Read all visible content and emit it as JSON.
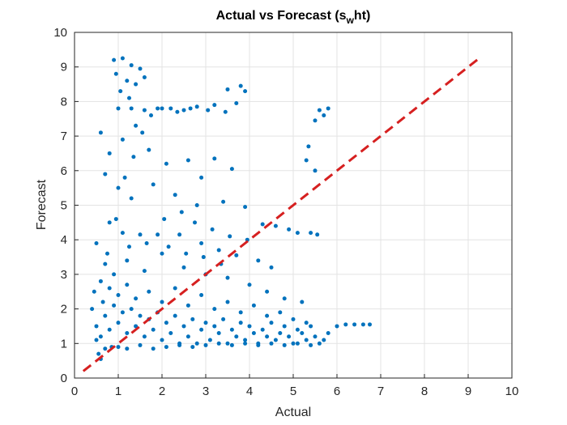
{
  "chart_data": {
    "type": "scatter",
    "title_main": "Actual vs Forecast (s",
    "title_sub": "w",
    "title_end": "ht)",
    "xlabel": "Actual",
    "ylabel": "Forecast",
    "xlim": [
      0,
      10
    ],
    "ylim": [
      0,
      10
    ],
    "xticks": [
      "0",
      "1",
      "2",
      "3",
      "4",
      "5",
      "6",
      "7",
      "8",
      "9",
      "10"
    ],
    "yticks": [
      "0",
      "1",
      "2",
      "3",
      "4",
      "5",
      "6",
      "7",
      "8",
      "9",
      "10"
    ],
    "grid": true,
    "marker_color": "#0072BD",
    "reference_line": {
      "style": "dashed",
      "color": "#D62020",
      "x": [
        0.2,
        9.3
      ],
      "y": [
        0.2,
        9.3
      ]
    },
    "series": [
      {
        "points": [
          [
            0.9,
            9.2
          ],
          [
            1.1,
            9.25
          ],
          [
            1.3,
            9.05
          ],
          [
            1.5,
            8.95
          ],
          [
            0.95,
            8.8
          ],
          [
            1.2,
            8.6
          ],
          [
            1.4,
            8.5
          ],
          [
            1.6,
            8.7
          ],
          [
            1.05,
            8.3
          ],
          [
            1.25,
            8.1
          ],
          [
            3.8,
            8.45
          ],
          [
            3.9,
            8.3
          ],
          [
            3.5,
            8.35
          ],
          [
            3.7,
            7.95
          ],
          [
            3.2,
            7.9
          ],
          [
            2.8,
            7.85
          ],
          [
            5.6,
            7.75
          ],
          [
            5.8,
            7.8
          ],
          [
            5.7,
            7.6
          ],
          [
            5.5,
            7.45
          ],
          [
            1.0,
            7.8
          ],
          [
            1.3,
            7.8
          ],
          [
            1.6,
            7.75
          ],
          [
            1.9,
            7.8
          ],
          [
            2.2,
            7.8
          ],
          [
            2.5,
            7.75
          ],
          [
            0.6,
            7.1
          ],
          [
            0.8,
            6.5
          ],
          [
            1.1,
            6.9
          ],
          [
            1.4,
            7.3
          ],
          [
            1.7,
            6.6
          ],
          [
            2.1,
            6.2
          ],
          [
            2.6,
            6.3
          ],
          [
            3.2,
            6.35
          ],
          [
            3.6,
            6.05
          ],
          [
            2.9,
            5.8
          ],
          [
            0.7,
            5.9
          ],
          [
            1.0,
            5.5
          ],
          [
            1.3,
            5.2
          ],
          [
            1.8,
            5.6
          ],
          [
            2.3,
            5.3
          ],
          [
            2.8,
            5.0
          ],
          [
            3.4,
            5.1
          ],
          [
            3.9,
            4.95
          ],
          [
            5.3,
            6.3
          ],
          [
            5.35,
            6.7
          ],
          [
            5.5,
            6.0
          ],
          [
            4.3,
            4.45
          ],
          [
            4.6,
            4.4
          ],
          [
            4.9,
            4.3
          ],
          [
            5.1,
            4.2
          ],
          [
            5.4,
            4.2
          ],
          [
            5.55,
            4.15
          ],
          [
            0.8,
            4.5
          ],
          [
            1.1,
            4.2
          ],
          [
            1.5,
            4.15
          ],
          [
            1.9,
            4.15
          ],
          [
            2.4,
            4.15
          ],
          [
            2.9,
            3.9
          ],
          [
            3.3,
            3.7
          ],
          [
            3.7,
            3.55
          ],
          [
            4.2,
            3.4
          ],
          [
            4.5,
            3.2
          ],
          [
            0.5,
            3.9
          ],
          [
            0.7,
            3.3
          ],
          [
            0.9,
            3.0
          ],
          [
            1.2,
            3.4
          ],
          [
            1.6,
            3.1
          ],
          [
            2.0,
            3.6
          ],
          [
            2.5,
            3.2
          ],
          [
            3.0,
            3.0
          ],
          [
            3.5,
            2.9
          ],
          [
            4.0,
            2.7
          ],
          [
            4.4,
            2.5
          ],
          [
            4.8,
            2.3
          ],
          [
            5.2,
            2.2
          ],
          [
            0.45,
            2.5
          ],
          [
            0.6,
            2.8
          ],
          [
            0.8,
            2.6
          ],
          [
            1.0,
            2.4
          ],
          [
            1.2,
            2.7
          ],
          [
            1.4,
            2.3
          ],
          [
            1.7,
            2.5
          ],
          [
            2.0,
            2.2
          ],
          [
            2.3,
            2.6
          ],
          [
            2.6,
            2.1
          ],
          [
            2.9,
            2.4
          ],
          [
            3.2,
            2.0
          ],
          [
            3.5,
            2.2
          ],
          [
            3.8,
            1.9
          ],
          [
            4.1,
            2.1
          ],
          [
            4.4,
            1.8
          ],
          [
            4.7,
            1.9
          ],
          [
            5.0,
            1.7
          ],
          [
            5.3,
            1.6
          ],
          [
            0.4,
            2.0
          ],
          [
            0.5,
            1.5
          ],
          [
            0.6,
            1.2
          ],
          [
            0.7,
            1.8
          ],
          [
            0.8,
            1.4
          ],
          [
            0.9,
            2.1
          ],
          [
            1.0,
            1.6
          ],
          [
            1.1,
            1.9
          ],
          [
            1.2,
            1.3
          ],
          [
            1.3,
            2.0
          ],
          [
            1.4,
            1.5
          ],
          [
            1.5,
            1.8
          ],
          [
            1.6,
            1.2
          ],
          [
            1.7,
            1.7
          ],
          [
            1.8,
            1.4
          ],
          [
            1.9,
            1.9
          ],
          [
            2.0,
            1.1
          ],
          [
            2.1,
            1.6
          ],
          [
            2.2,
            1.3
          ],
          [
            2.3,
            1.8
          ],
          [
            2.4,
            1.0
          ],
          [
            2.5,
            1.5
          ],
          [
            2.6,
            1.2
          ],
          [
            2.7,
            1.7
          ],
          [
            2.8,
            1.0
          ],
          [
            2.9,
            1.4
          ],
          [
            3.0,
            1.6
          ],
          [
            3.1,
            1.1
          ],
          [
            3.2,
            1.5
          ],
          [
            3.3,
            1.3
          ],
          [
            3.4,
            1.7
          ],
          [
            3.5,
            1.0
          ],
          [
            3.6,
            1.4
          ],
          [
            3.7,
            1.2
          ],
          [
            3.8,
            1.6
          ],
          [
            3.9,
            1.1
          ],
          [
            4.0,
            1.5
          ],
          [
            4.1,
            1.3
          ],
          [
            4.2,
            1.0
          ],
          [
            4.3,
            1.4
          ],
          [
            4.4,
            1.2
          ],
          [
            4.5,
            1.6
          ],
          [
            4.6,
            1.1
          ],
          [
            4.7,
            1.3
          ],
          [
            4.8,
            1.5
          ],
          [
            4.9,
            1.2
          ],
          [
            5.0,
            1.0
          ],
          [
            5.1,
            1.4
          ],
          [
            5.2,
            1.3
          ],
          [
            5.3,
            1.1
          ],
          [
            5.4,
            1.5
          ],
          [
            5.5,
            1.2
          ],
          [
            5.6,
            1.0
          ],
          [
            5.7,
            1.1
          ],
          [
            5.8,
            1.3
          ],
          [
            6.0,
            1.5
          ],
          [
            6.2,
            1.55
          ],
          [
            6.4,
            1.55
          ],
          [
            6.6,
            1.55
          ],
          [
            6.75,
            1.55
          ],
          [
            0.55,
            0.7
          ],
          [
            0.6,
            0.55
          ],
          [
            0.7,
            0.85
          ],
          [
            0.85,
            0.9
          ],
          [
            1.0,
            0.9
          ],
          [
            1.2,
            0.85
          ],
          [
            1.5,
            0.95
          ],
          [
            1.8,
            0.85
          ],
          [
            2.1,
            0.9
          ],
          [
            2.4,
            0.95
          ],
          [
            2.7,
            0.9
          ],
          [
            3.0,
            0.95
          ],
          [
            3.3,
            1.0
          ],
          [
            3.6,
            0.95
          ],
          [
            3.9,
            1.0
          ],
          [
            4.2,
            0.95
          ],
          [
            4.5,
            1.0
          ],
          [
            4.8,
            0.95
          ],
          [
            5.1,
            1.0
          ],
          [
            5.4,
            0.95
          ],
          [
            0.5,
            1.1
          ],
          [
            0.65,
            2.2
          ],
          [
            0.75,
            3.6
          ],
          [
            0.95,
            4.6
          ],
          [
            1.15,
            5.8
          ],
          [
            1.35,
            6.4
          ],
          [
            1.55,
            7.1
          ],
          [
            1.75,
            7.6
          ],
          [
            2.0,
            7.8
          ],
          [
            2.35,
            7.7
          ],
          [
            2.65,
            7.8
          ],
          [
            3.05,
            7.75
          ],
          [
            3.45,
            7.7
          ],
          [
            2.05,
            4.6
          ],
          [
            2.45,
            4.8
          ],
          [
            2.75,
            4.5
          ],
          [
            3.15,
            4.3
          ],
          [
            3.55,
            4.1
          ],
          [
            3.95,
            4.0
          ],
          [
            1.25,
            3.8
          ],
          [
            1.65,
            3.9
          ],
          [
            2.15,
            3.8
          ],
          [
            2.55,
            3.6
          ],
          [
            2.95,
            3.5
          ],
          [
            3.35,
            3.3
          ]
        ]
      }
    ]
  }
}
